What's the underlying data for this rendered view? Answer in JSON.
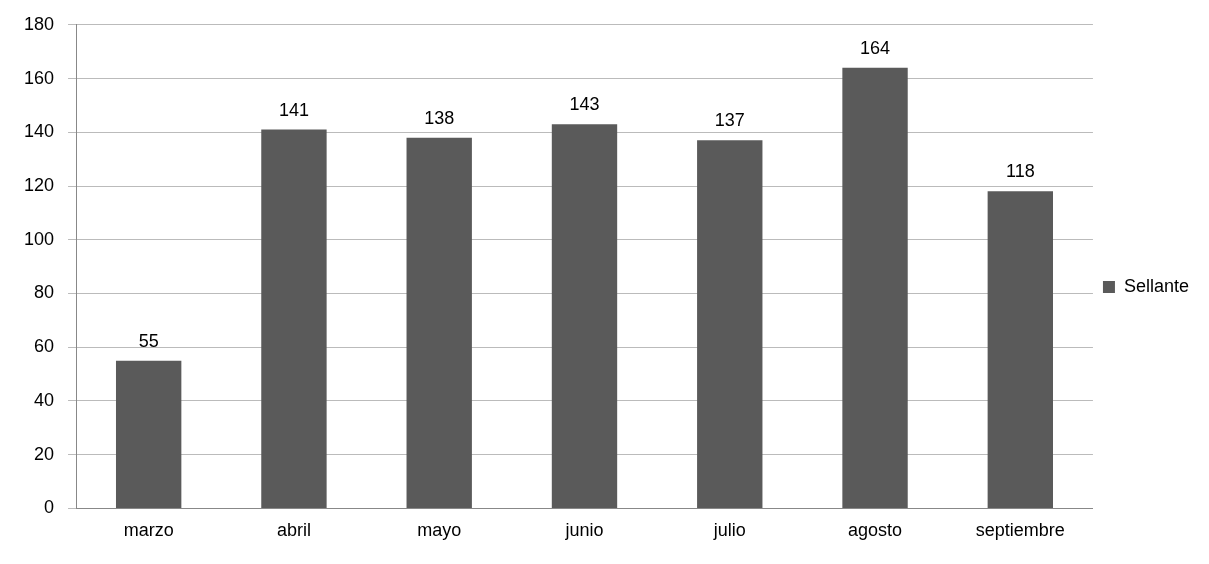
{
  "chart_data": {
    "type": "bar",
    "categories": [
      "marzo",
      "abril",
      "mayo",
      "junio",
      "julio",
      "agosto",
      "septiembre"
    ],
    "series": [
      {
        "name": "Sellante",
        "color": "#5a5a5a",
        "values": [
          55,
          141,
          138,
          143,
          137,
          164,
          118
        ]
      }
    ],
    "ylim": [
      0,
      180
    ],
    "yticks": [
      0,
      20,
      40,
      60,
      80,
      100,
      120,
      140,
      160,
      180
    ],
    "grid": "y",
    "legend": "right",
    "data_labels": true
  }
}
